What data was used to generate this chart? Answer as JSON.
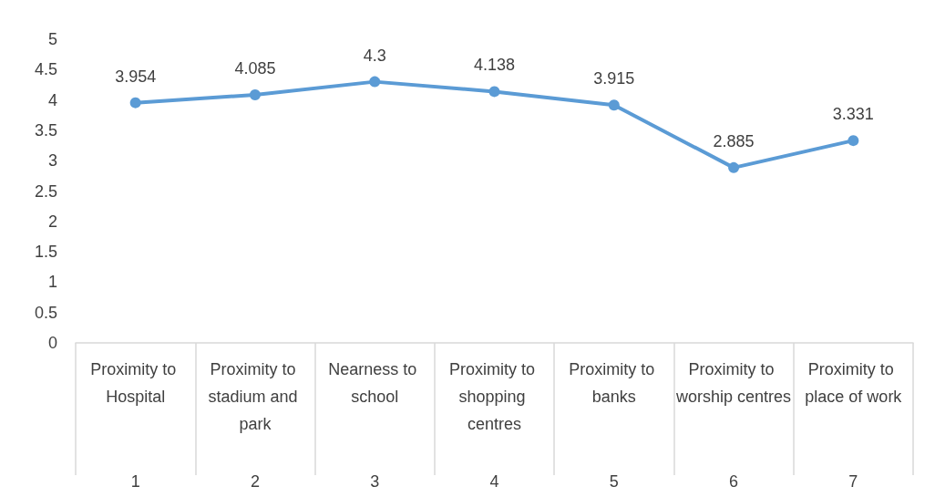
{
  "chart_data": {
    "type": "line",
    "categories": [
      "Proximity to Hospital",
      "Proximity to stadium and park",
      "Nearness to school",
      "Proximity to shopping centres",
      "Proximity to banks",
      "Proximity to worship centres",
      "Proximity to place of work"
    ],
    "series": [
      {
        "color": "#5b9bd5",
        "values": [
          3.954,
          4.085,
          4.3,
          4.138,
          3.915,
          2.885,
          3.331
        ]
      }
    ],
    "ylim": [
      0,
      5
    ],
    "yticks": [
      0,
      0.5,
      1,
      1.5,
      2,
      2.5,
      3,
      3.5,
      4,
      4.5,
      5
    ],
    "data_labels": true,
    "grid": false,
    "marker": "circle",
    "line_style": "solid",
    "annotations": [
      "1",
      "2",
      "3",
      "4",
      "5",
      "6",
      "7"
    ]
  }
}
